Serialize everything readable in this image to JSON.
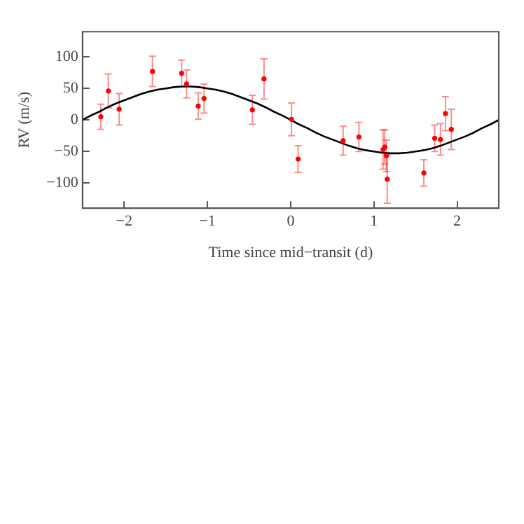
{
  "chart_data": {
    "type": "scatter",
    "xlabel": "Time since mid−transit (d)",
    "ylabel": "RV (m/s)",
    "xlim": [
      -2.5,
      2.5
    ],
    "xticks": [
      {
        "value": -2,
        "label": "−2"
      },
      {
        "value": -1,
        "label": "−1"
      },
      0,
      1,
      2
    ],
    "ylim": [
      -140,
      140
    ],
    "yticks": [
      {
        "value": -100,
        "label": "−100"
      },
      {
        "value": -50,
        "label": "−50"
      },
      0,
      50,
      100
    ],
    "grid": false,
    "legend": false,
    "marker": "circle",
    "series": [
      {
        "type": "scatter",
        "color": "#ff0000",
        "x": [
          -2.28,
          -2.19,
          -2.06,
          -1.66,
          -1.31,
          -1.25,
          -1.11,
          -1.04,
          -0.46,
          -0.32,
          0.01,
          0.09,
          0.63,
          0.82,
          1.11,
          1.13,
          1.15,
          1.16,
          1.6,
          1.73,
          1.8,
          1.86,
          1.93
        ],
        "values": [
          5,
          46,
          17,
          77,
          74,
          57,
          22,
          34,
          16,
          65,
          1,
          -62,
          -33,
          -27,
          -47,
          -43,
          -57,
          -94,
          -84,
          -29,
          -31,
          10,
          -15
        ],
        "errors": [
          20,
          27,
          25,
          24,
          21,
          22,
          21,
          23,
          23,
          32,
          26,
          21,
          23,
          23,
          31,
          27,
          25,
          38,
          21,
          21,
          25,
          27,
          32
        ]
      },
      {
        "type": "line",
        "color": "#000000",
        "marker": "none",
        "x": [
          -2.5,
          -2.4,
          -2.3,
          -2.2,
          -2.1,
          -2.0,
          -1.9,
          -1.8,
          -1.7,
          -1.6,
          -1.5,
          -1.4,
          -1.3,
          -1.2,
          -1.1,
          -1.0,
          -0.9,
          -0.8,
          -0.7,
          -0.6,
          -0.5,
          -0.4,
          -0.3,
          -0.2,
          -0.1,
          0,
          0.1,
          0.2,
          0.3,
          0.4,
          0.5,
          0.6,
          0.7,
          0.8,
          0.9,
          1.0,
          1.1,
          1.2,
          1.3,
          1.4,
          1.5,
          1.6,
          1.7,
          1.8,
          1.9,
          2.0,
          2.1,
          2.2,
          2.3,
          2.4,
          2.5
        ],
        "values": [
          0,
          7,
          13,
          20,
          26,
          31,
          36,
          41,
          45,
          48,
          50,
          52,
          53,
          53,
          52,
          50,
          48,
          45,
          41,
          36,
          31,
          26,
          20,
          13,
          7,
          0,
          -7,
          -13,
          -20,
          -26,
          -31,
          -36,
          -41,
          -45,
          -48,
          -50,
          -52,
          -53,
          -53,
          -52,
          -50,
          -48,
          -45,
          -41,
          -36,
          -31,
          -26,
          -20,
          -13,
          -7,
          0
        ]
      }
    ]
  }
}
